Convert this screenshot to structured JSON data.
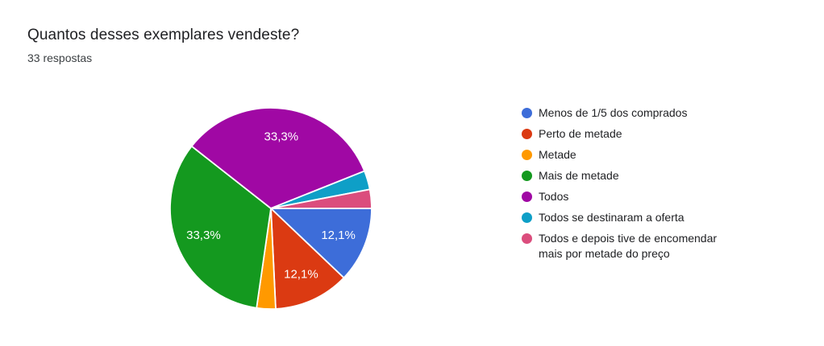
{
  "header": {
    "title": "Quantos desses exemplares vendeste?",
    "responses_count": "33 respostas"
  },
  "chart_data": {
    "type": "pie",
    "title": "Quantos desses exemplares vendeste?",
    "total_responses": 33,
    "legend_position": "right",
    "start_angle_deg": 0,
    "direction": "clockwise",
    "slices": [
      {
        "label": "Menos de 1/5 dos comprados",
        "value": 4,
        "percent": 12.1,
        "percent_label": "12,1%",
        "color": "#3D6DD9"
      },
      {
        "label": "Perto de metade",
        "value": 4,
        "percent": 12.1,
        "percent_label": "12,1%",
        "color": "#DB3A12"
      },
      {
        "label": "Metade",
        "value": 1,
        "percent": 3.0,
        "percent_label": "",
        "color": "#FF9900"
      },
      {
        "label": "Mais de metade",
        "value": 11,
        "percent": 33.3,
        "percent_label": "33,3%",
        "color": "#14991F"
      },
      {
        "label": "Todos",
        "value": 11,
        "percent": 33.3,
        "percent_label": "33,3%",
        "color": "#A008A4"
      },
      {
        "label": "Todos se destinaram a oferta",
        "value": 1,
        "percent": 3.0,
        "percent_label": "",
        "color": "#0E9FC7"
      },
      {
        "label": "Todos e depois tive de encomendar mais por metade do preço",
        "value": 1,
        "percent": 3.0,
        "percent_label": "",
        "color": "#DB4D7D"
      }
    ]
  }
}
